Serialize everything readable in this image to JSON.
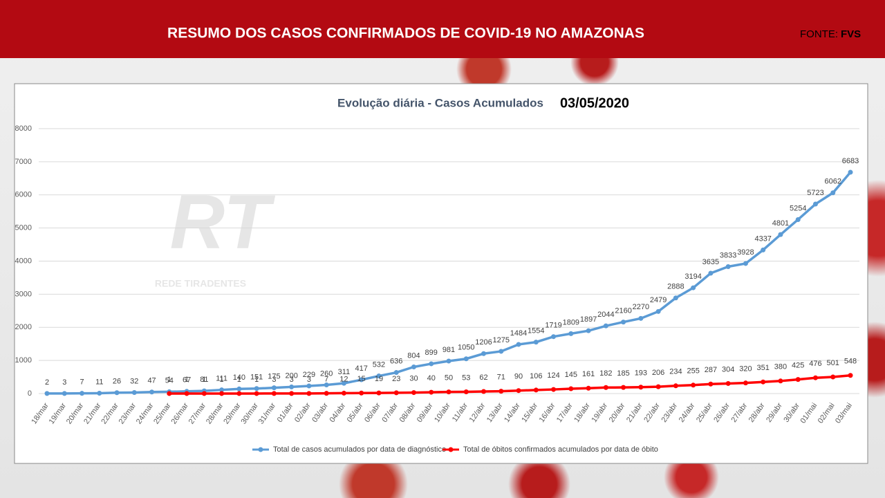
{
  "header": {
    "title": "RESUMO DOS CASOS CONFIRMADOS DE COVID-19 NO AMAZONAS",
    "source_label": "FONTE:",
    "source": "FVS"
  },
  "watermark": {
    "logo": "RT",
    "name": "REDE TIRADENTES"
  },
  "chart_data": {
    "type": "line",
    "title": "Evolução diária - Casos Acumulados",
    "date": "03/05/2020",
    "categories": [
      "18/mar",
      "19/mar",
      "20/mar",
      "21/mar",
      "22/mar",
      "23/mar",
      "24/mar",
      "25/mar",
      "26/mar",
      "27/mar",
      "28/mar",
      "29/mar",
      "30/mar",
      "31/mar",
      "01/abr",
      "02/abr",
      "03/abr",
      "04/abr",
      "05/abr",
      "06/abr",
      "07/abr",
      "08/abr",
      "09/abr",
      "10/abr",
      "11/abr",
      "12/abr",
      "13/abr",
      "14/abr",
      "15/abr",
      "16/abr",
      "17/abr",
      "18/abr",
      "19/abr",
      "20/abr",
      "21/abr",
      "22/abr",
      "23/abr",
      "24/abr",
      "25/abr",
      "26/abr",
      "27/abr",
      "28/abr",
      "29/abr",
      "30/abr",
      "01/mai",
      "02/mai",
      "03/mai"
    ],
    "series": [
      {
        "name": "Total de casos acumulados por data de diagnóstico",
        "color": "#5b9bd5",
        "values": [
          2,
          3,
          7,
          11,
          26,
          32,
          47,
          54,
          67,
          81,
          111,
          140,
          151,
          175,
          200,
          229,
          260,
          311,
          417,
          532,
          636,
          804,
          899,
          981,
          1050,
          1206,
          1275,
          1484,
          1554,
          1719,
          1809,
          1897,
          2044,
          2160,
          2270,
          2479,
          2888,
          3194,
          3635,
          3833,
          3928,
          4337,
          4801,
          5254,
          5723,
          6062,
          6683
        ]
      },
      {
        "name": "Total de óbitos confirmados acumulados por data de óbito",
        "color": "#ff0000",
        "values": [
          null,
          null,
          null,
          null,
          null,
          null,
          null,
          1,
          1,
          1,
          1,
          1,
          1,
          3,
          3,
          3,
          7,
          12,
          15,
          19,
          23,
          30,
          40,
          50,
          53,
          62,
          71,
          90,
          106,
          124,
          145,
          161,
          182,
          185,
          193,
          206,
          234,
          255,
          287,
          304,
          320,
          351,
          380,
          425,
          476,
          501,
          548
        ]
      }
    ],
    "ylim": [
      0,
      8000
    ],
    "yticks": [
      0,
      1000,
      2000,
      3000,
      4000,
      5000,
      6000,
      7000,
      8000
    ],
    "grid": true,
    "legend": "bottom"
  }
}
